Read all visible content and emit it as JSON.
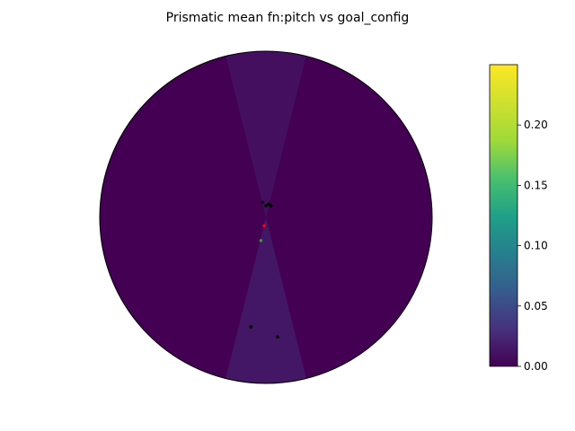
{
  "chart_data": {
    "type": "heatmap",
    "projection": "polar",
    "title": "Prismatic mean fn:pitch vs goal_config",
    "colormap": "viridis",
    "colorbar": {
      "range": [
        0.0,
        0.25
      ],
      "ticks": [
        0.0,
        0.05,
        0.1,
        0.15,
        0.2
      ],
      "tick_labels": [
        "0.00",
        "0.05",
        "0.10",
        "0.15",
        "0.20"
      ],
      "placement": "right"
    },
    "field": {
      "background_value": 0.0,
      "lobes": [
        {
          "theta_deg": 90,
          "half_width_deg": 14,
          "value": 0.01
        },
        {
          "theta_deg": 270,
          "half_width_deg": 14,
          "value": 0.015
        }
      ]
    },
    "points_black": [
      {
        "x": -0.02,
        "y": 0.09
      },
      {
        "x": 0.0,
        "y": 0.07
      },
      {
        "x": 0.015,
        "y": 0.08
      },
      {
        "x": 0.03,
        "y": 0.07
      },
      {
        "x": -0.09,
        "y": -0.66
      },
      {
        "x": 0.07,
        "y": -0.72
      }
    ],
    "point_red": {
      "x": -0.01,
      "y": -0.05
    },
    "point_green": {
      "x": -0.03,
      "y": -0.14
    },
    "grid": false,
    "colors": {
      "red_point": "#ff0000",
      "green_point": "#2ca02c",
      "black_point": "#000000",
      "disk_edge": "#000000"
    }
  }
}
